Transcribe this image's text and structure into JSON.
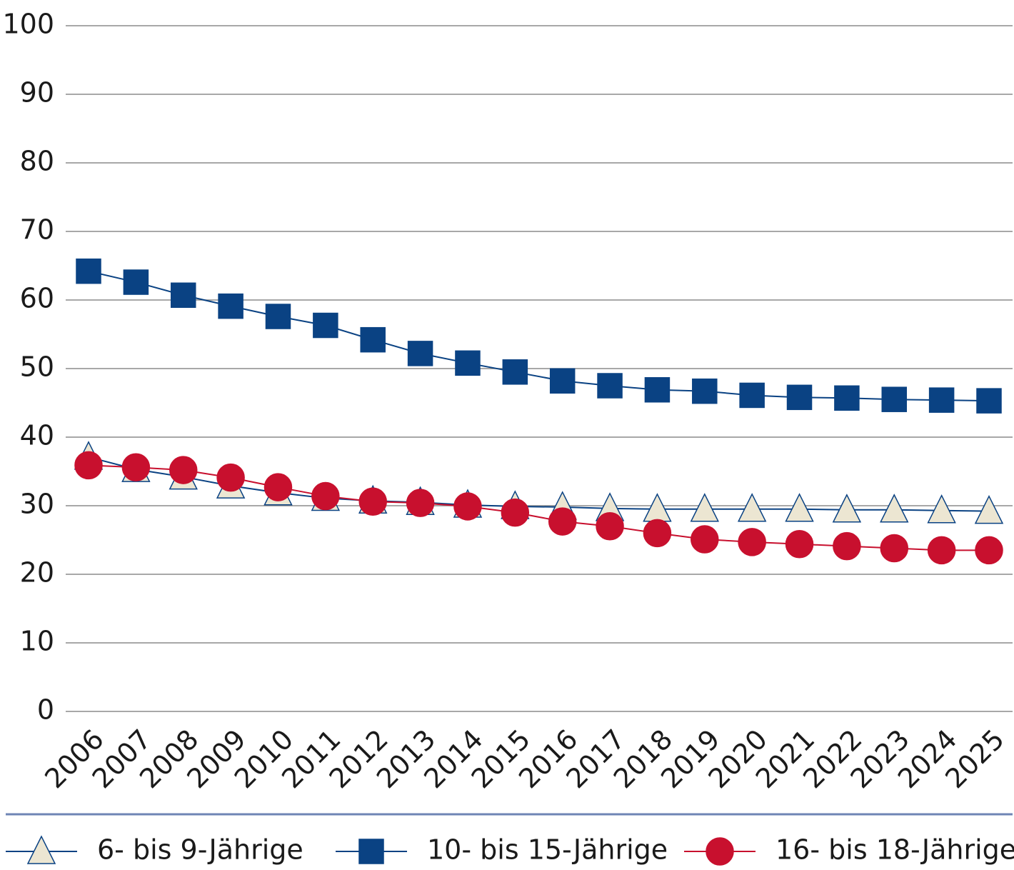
{
  "chart_data": {
    "type": "line",
    "categories": [
      "2006",
      "2007",
      "2008",
      "2009",
      "2010",
      "2011",
      "2012",
      "2013",
      "2014",
      "2015",
      "2016",
      "2017",
      "2018",
      "2019",
      "2020",
      "2021",
      "2022",
      "2023",
      "2024",
      "2025"
    ],
    "series": [
      {
        "name": "6- bis 9-Jährige",
        "color": "#0a4283",
        "marker": "triangle",
        "marker_fill": "#ece6d2",
        "values": [
          37.1,
          35.3,
          34.2,
          32.9,
          31.9,
          31.1,
          30.7,
          30.5,
          30.1,
          29.9,
          29.8,
          29.6,
          29.5,
          29.5,
          29.5,
          29.5,
          29.4,
          29.4,
          29.3,
          29.2
        ]
      },
      {
        "name": "10- bis 15-Jährige",
        "color": "#0a4283",
        "marker": "square",
        "marker_fill": "#0a4283",
        "values": [
          64.2,
          62.6,
          60.7,
          59.1,
          57.6,
          56.3,
          54.2,
          52.2,
          50.8,
          49.5,
          48.2,
          47.5,
          46.9,
          46.7,
          46.1,
          45.8,
          45.7,
          45.5,
          45.4,
          45.3
        ]
      },
      {
        "name": "16- bis 18-Jährige",
        "color": "#c8102e",
        "marker": "circle",
        "marker_fill": "#c8102e",
        "values": [
          35.9,
          35.6,
          35.2,
          34.1,
          32.7,
          31.4,
          30.6,
          30.4,
          29.9,
          29.0,
          27.7,
          27.0,
          26.0,
          25.1,
          24.7,
          24.4,
          24.1,
          23.8,
          23.5,
          23.5
        ]
      }
    ],
    "ylim": [
      0,
      100
    ],
    "yticks": [
      0,
      10,
      20,
      30,
      40,
      50,
      60,
      70,
      80,
      90,
      100
    ],
    "grid": true,
    "legend": "bottom"
  }
}
